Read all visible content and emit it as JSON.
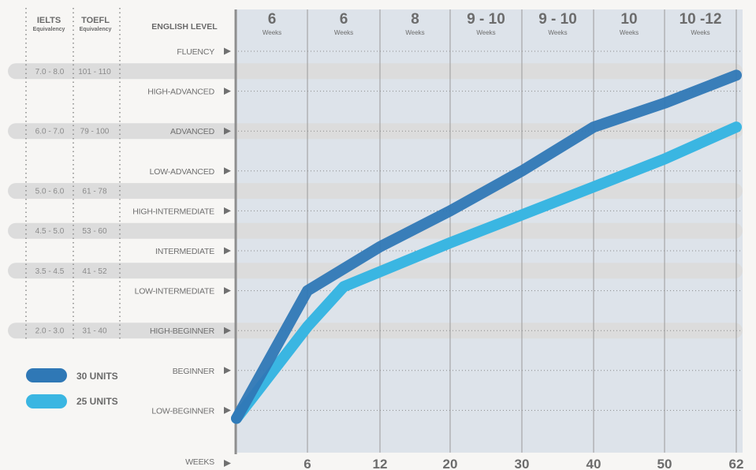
{
  "headers": {
    "ielts": {
      "title": "IELTS",
      "sub": "Equivalency"
    },
    "toefl": {
      "title": "TOEFL",
      "sub": "Equivalency"
    },
    "level": "ENGLISH LEVEL"
  },
  "levels": [
    "FLUENCY",
    "HIGH-ADVANCED",
    "ADVANCED",
    "LOW-ADVANCED",
    "HIGH-INTERMEDIATE",
    "INTERMEDIATE",
    "LOW-INTERMEDIATE",
    "HIGH-BEGINNER",
    "BEGINNER",
    "LOW-BEGINNER"
  ],
  "score_bands": [
    {
      "ielts": "7.0 - 8.0",
      "toefl": "101 - 110"
    },
    {
      "ielts": "6.0 - 7.0",
      "toefl": "79 - 100"
    },
    {
      "ielts": "5.0 - 6.0",
      "toefl": "61 - 78"
    },
    {
      "ielts": "4.5 - 5.0",
      "toefl": "53 - 60"
    },
    {
      "ielts": "3.5 - 4.5",
      "toefl": "41 - 52"
    },
    {
      "ielts": "2.0 - 3.0",
      "toefl": "31 - 40"
    }
  ],
  "columns": [
    {
      "value": "6",
      "unit": "Weeks"
    },
    {
      "value": "6",
      "unit": "Weeks"
    },
    {
      "value": "8",
      "unit": "Weeks"
    },
    {
      "value": "9 - 10",
      "unit": "Weeks"
    },
    {
      "value": "9 - 10",
      "unit": "Weeks"
    },
    {
      "value": "10",
      "unit": "Weeks"
    },
    {
      "value": "10 -12",
      "unit": "Weeks"
    }
  ],
  "weeks_label": "WEEKS",
  "colors": {
    "series_30": "#2f78b6",
    "series_25": "#3ab6e2",
    "band": "#dcdcdc",
    "grid": "#8a8a8a",
    "axis": "#8e8e8e"
  },
  "chart_data": {
    "type": "line",
    "xlabel": "WEEKS",
    "ylabel": "ENGLISH LEVEL",
    "x_ticks": [
      "6",
      "12",
      "20",
      "30",
      "40",
      "50",
      "62"
    ],
    "y_levels": [
      "LOW-BEGINNER",
      "BEGINNER",
      "HIGH-BEGINNER",
      "LOW-INTERMEDIATE",
      "INTERMEDIATE",
      "HIGH-INTERMEDIATE",
      "LOW-ADVANCED",
      "ADVANCED",
      "HIGH-ADVANCED",
      "FLUENCY"
    ],
    "legend_position": "bottom-left",
    "series": [
      {
        "name": "30 UNITS",
        "color": "#2f78b6",
        "points": [
          [
            0,
            -0.2
          ],
          [
            6,
            3.0
          ],
          [
            12,
            4.1
          ],
          [
            20,
            5.0
          ],
          [
            30,
            6.0
          ],
          [
            40,
            7.1
          ],
          [
            50,
            7.7
          ],
          [
            62,
            8.4
          ]
        ]
      },
      {
        "name": "25 UNITS",
        "color": "#3ab6e2",
        "points": [
          [
            0,
            -0.2
          ],
          [
            6,
            2.1
          ],
          [
            9,
            3.1
          ],
          [
            20,
            4.2
          ],
          [
            30,
            4.9
          ],
          [
            40,
            5.6
          ],
          [
            50,
            6.3
          ],
          [
            62,
            7.1
          ]
        ]
      }
    ]
  }
}
